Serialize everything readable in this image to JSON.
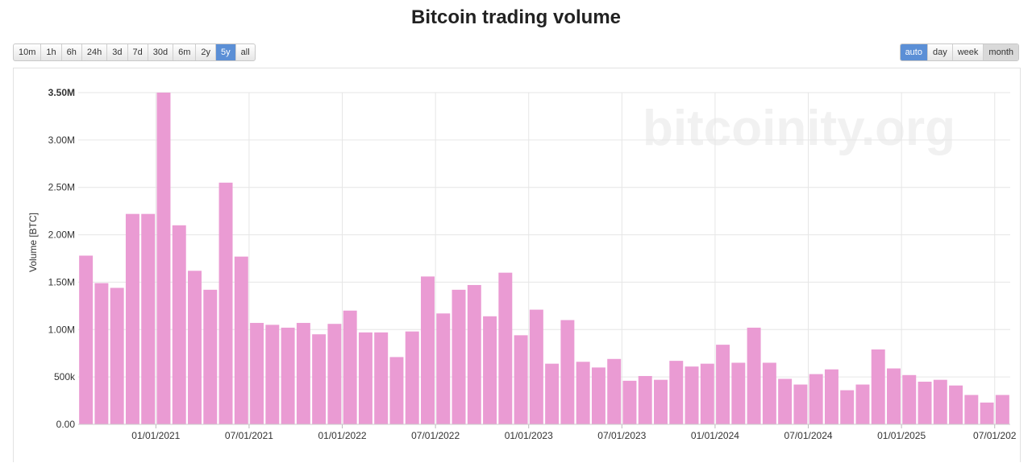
{
  "page": {
    "title": "Bitcoin trading volume",
    "watermark": "bitcoinity.org"
  },
  "range_buttons": [
    {
      "label": "10m",
      "active": false
    },
    {
      "label": "1h",
      "active": false
    },
    {
      "label": "6h",
      "active": false
    },
    {
      "label": "24h",
      "active": false
    },
    {
      "label": "3d",
      "active": false
    },
    {
      "label": "7d",
      "active": false
    },
    {
      "label": "30d",
      "active": false
    },
    {
      "label": "6m",
      "active": false
    },
    {
      "label": "2y",
      "active": false
    },
    {
      "label": "5y",
      "active": true
    },
    {
      "label": "all",
      "active": false
    }
  ],
  "period_buttons": [
    {
      "label": "auto",
      "active": true,
      "pressed": false
    },
    {
      "label": "day",
      "active": false,
      "pressed": false
    },
    {
      "label": "week",
      "active": false,
      "pressed": false
    },
    {
      "label": "month",
      "active": false,
      "pressed": true
    }
  ],
  "colors": {
    "bar": "#ea9bd3",
    "grid": "#e6e6e6",
    "active_button": "#5b8fd6"
  },
  "chart_data": {
    "type": "bar",
    "ylabel": "Volume [BTC]",
    "ylim": [
      0,
      3500000
    ],
    "yticks": [
      {
        "value": 0,
        "label": "0.00"
      },
      {
        "value": 500000,
        "label": "500k"
      },
      {
        "value": 1000000,
        "label": "1.00M"
      },
      {
        "value": 1500000,
        "label": "1.50M"
      },
      {
        "value": 2000000,
        "label": "2.00M"
      },
      {
        "value": 2500000,
        "label": "2.50M"
      },
      {
        "value": 3000000,
        "label": "3.00M"
      },
      {
        "value": 3500000,
        "label": "3.50M"
      }
    ],
    "xticks": [
      "01/01/2021",
      "07/01/2021",
      "01/01/2022",
      "07/01/2022",
      "01/01/2023",
      "07/01/2023",
      "01/01/2024",
      "07/01/2024",
      "01/01/2025",
      "07/01/202"
    ],
    "grid": true,
    "categories": [
      "2020-08",
      "2020-09",
      "2020-10",
      "2020-11",
      "2020-12",
      "2021-01",
      "2021-02",
      "2021-03",
      "2021-04",
      "2021-05",
      "2021-06",
      "2021-07",
      "2021-08",
      "2021-09",
      "2021-10",
      "2021-11",
      "2021-12",
      "2022-01",
      "2022-02",
      "2022-03",
      "2022-04",
      "2022-05",
      "2022-06",
      "2022-07",
      "2022-08",
      "2022-09",
      "2022-10",
      "2022-11",
      "2022-12",
      "2023-01",
      "2023-02",
      "2023-03",
      "2023-04",
      "2023-05",
      "2023-06",
      "2023-07",
      "2023-08",
      "2023-09",
      "2023-10",
      "2023-11",
      "2023-12",
      "2024-01",
      "2024-02",
      "2024-03",
      "2024-04",
      "2024-05",
      "2024-06",
      "2024-07",
      "2024-08",
      "2024-09",
      "2024-10",
      "2024-11",
      "2024-12",
      "2025-01",
      "2025-02",
      "2025-03",
      "2025-04",
      "2025-05",
      "2025-06",
      "2025-07"
    ],
    "values": [
      1780000,
      1490000,
      1440000,
      2220000,
      2220000,
      3500000,
      2100000,
      1620000,
      1420000,
      2550000,
      1770000,
      1070000,
      1050000,
      1020000,
      1070000,
      950000,
      1060000,
      1200000,
      970000,
      970000,
      710000,
      980000,
      1560000,
      1170000,
      1420000,
      1470000,
      1140000,
      1600000,
      940000,
      1210000,
      640000,
      1100000,
      660000,
      600000,
      690000,
      460000,
      510000,
      470000,
      670000,
      610000,
      640000,
      840000,
      650000,
      1020000,
      650000,
      480000,
      420000,
      530000,
      580000,
      360000,
      420000,
      790000,
      590000,
      520000,
      450000,
      470000,
      410000,
      310000,
      230000,
      310000
    ]
  }
}
